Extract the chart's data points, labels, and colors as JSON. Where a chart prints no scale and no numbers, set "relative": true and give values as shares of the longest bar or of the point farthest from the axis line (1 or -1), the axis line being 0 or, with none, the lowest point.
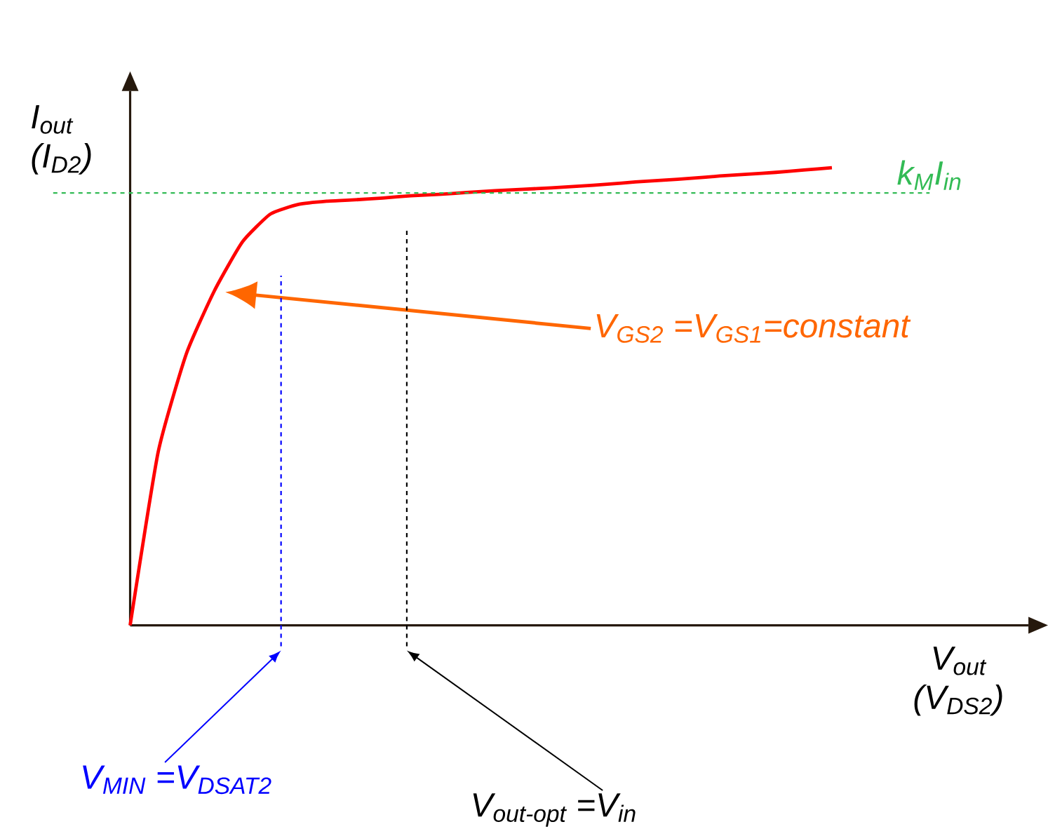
{
  "chart_data": {
    "type": "line",
    "relative": true,
    "xlabel": "V$_{out}$ (V$_{DS2}$)",
    "ylabel": "I$_{out}$ (I$_{D2}$)",
    "categories": [
      null,
      null,
      null,
      null,
      null,
      null,
      null,
      null,
      null,
      null,
      null,
      null,
      null,
      null,
      null,
      null,
      null,
      null,
      null,
      null,
      null,
      null,
      null,
      null,
      null,
      null,
      null,
      null,
      null,
      null,
      null,
      null,
      null
    ],
    "series": [
      {
        "color": "#ff0000",
        "values": [
          0,
          0.379,
          0.593,
          0.731,
          0.838,
          0.899,
          0.92,
          0.927,
          0.93,
          0.934,
          0.939,
          0.942,
          0.946,
          0.95,
          0.953,
          0.956,
          0.96,
          0.964,
          0.969,
          0.973,
          0.977,
          0.982,
          0.986,
          0.99,
          0.995,
          1,
          null,
          null,
          null,
          null,
          null,
          null,
          null
        ]
      }
    ],
    "marker": "none",
    "line_style": "solid",
    "ref_lines": [
      {
        "axis": "y",
        "value": 0.945,
        "label": "k$_{M}$I$_{in}$",
        "color": "#33bb55",
        "line_style": "dashed"
      }
    ],
    "annotations": [
      "V$_{GS2}$ =V$_{GS1}$=constant",
      "V$_{MIN}$ =V$_{DSAT2}$",
      "V$_{out-opt}$ =V$_{in}$"
    ]
  }
}
